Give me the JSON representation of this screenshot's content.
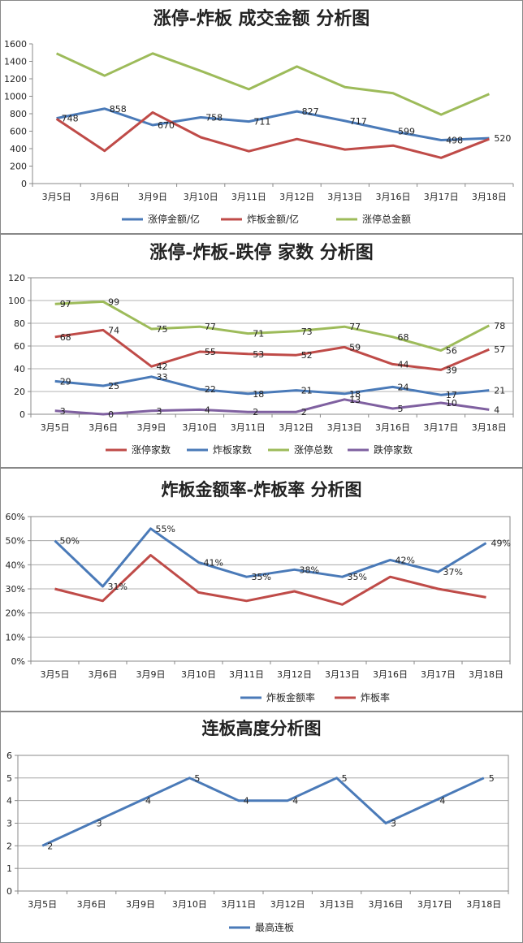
{
  "chart_data": [
    {
      "type": "line",
      "title": "涨停-炸板 成交金额 分析图",
      "categories": [
        "3月5日",
        "3月6日",
        "3月9日",
        "3月10日",
        "3月11日",
        "3月12日",
        "3月13日",
        "3月16日",
        "3月17日",
        "3月18日"
      ],
      "ylim": [
        0,
        1600
      ],
      "yticks": [
        0,
        200,
        400,
        600,
        800,
        1000,
        1200,
        1400,
        1600
      ],
      "grid": false,
      "legend": "bottom",
      "series": [
        {
          "name": "涨停金额/亿",
          "color": "#4a7ab8",
          "labels": true,
          "values": [
            748,
            858,
            670,
            758,
            711,
            827,
            717,
            599,
            498,
            520
          ]
        },
        {
          "name": "炸板金额/亿",
          "color": "#bf4b48",
          "labels": false,
          "values": [
            740,
            375,
            815,
            530,
            370,
            510,
            390,
            435,
            295,
            510
          ]
        },
        {
          "name": "涨停总金额",
          "color": "#9dbb5a",
          "labels": false,
          "values": [
            1490,
            1235,
            1490,
            1290,
            1080,
            1340,
            1105,
            1035,
            790,
            1025
          ]
        }
      ]
    },
    {
      "type": "line",
      "title": "涨停-炸板-跌停 家数 分析图",
      "categories": [
        "3月5日",
        "3月6日",
        "3月9日",
        "3月10日",
        "3月11日",
        "3月12日",
        "3月13日",
        "3月16日",
        "3月17日",
        "3月18日"
      ],
      "ylim": [
        0,
        120
      ],
      "yticks": [
        0,
        20,
        40,
        60,
        80,
        100,
        120
      ],
      "grid": true,
      "legend": "bottom",
      "series": [
        {
          "name": "涨停家数",
          "color": "#bf4b48",
          "labels": true,
          "values": [
            68,
            74,
            42,
            55,
            53,
            52,
            59,
            44,
            39,
            57
          ]
        },
        {
          "name": "炸板家数",
          "color": "#4a7ab8",
          "labels": true,
          "values": [
            29,
            25,
            33,
            22,
            18,
            21,
            18,
            24,
            17,
            21
          ]
        },
        {
          "name": "涨停总数",
          "color": "#9dbb5a",
          "labels": true,
          "values": [
            97,
            99,
            75,
            77,
            71,
            73,
            77,
            68,
            56,
            78
          ]
        },
        {
          "name": "跌停家数",
          "color": "#7f60a0",
          "labels": true,
          "values": [
            3,
            0,
            3,
            4,
            2,
            2,
            13,
            5,
            10,
            4
          ]
        }
      ]
    },
    {
      "type": "line",
      "title": "炸板金额率-炸板率 分析图",
      "categories": [
        "3月5日",
        "3月6日",
        "3月9日",
        "3月10日",
        "3月11日",
        "3月12日",
        "3月13日",
        "3月16日",
        "3月17日",
        "3月18日"
      ],
      "ylim": [
        0,
        60
      ],
      "yticks": [
        0,
        10,
        20,
        30,
        40,
        50,
        60
      ],
      "ytick_suffix": "%",
      "grid": true,
      "legend": "bottom",
      "series": [
        {
          "name": "炸板金额率",
          "color": "#4a7ab8",
          "labels": true,
          "suffix": "%",
          "values": [
            50,
            31,
            55,
            41,
            35,
            38,
            35,
            42,
            37,
            49
          ]
        },
        {
          "name": "炸板率",
          "color": "#bf4b48",
          "labels": false,
          "values": [
            30,
            25,
            44,
            28.5,
            25,
            29,
            23.5,
            35,
            30,
            26.5
          ]
        }
      ]
    },
    {
      "type": "line",
      "title": "连板高度分析图",
      "categories": [
        "3月5日",
        "3月6日",
        "3月9日",
        "3月10日",
        "3月11日",
        "3月12日",
        "3月13日",
        "3月16日",
        "3月17日",
        "3月18日"
      ],
      "ylim": [
        0,
        6
      ],
      "yticks": [
        0,
        1,
        2,
        3,
        4,
        5,
        6
      ],
      "grid": true,
      "legend": "bottom",
      "series": [
        {
          "name": "最高连板",
          "color": "#4a7ab8",
          "labels": true,
          "values": [
            2,
            3,
            4,
            5,
            4,
            4,
            5,
            3,
            4,
            5
          ]
        }
      ]
    }
  ]
}
